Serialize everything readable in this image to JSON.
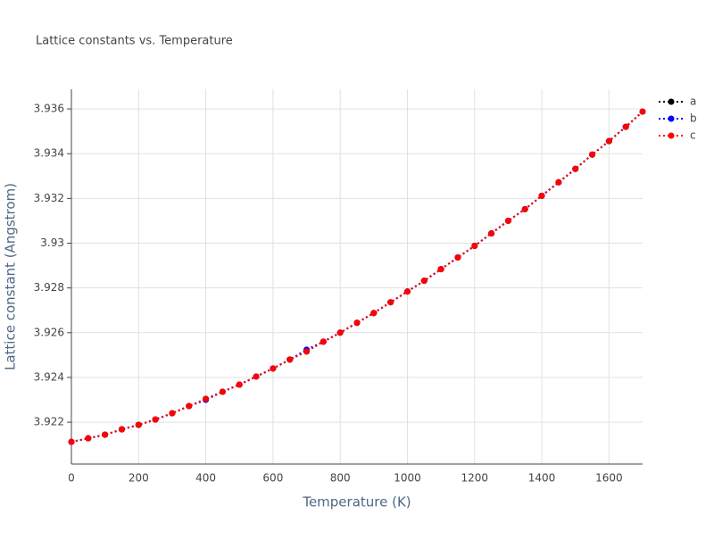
{
  "chart_data": {
    "type": "line",
    "title": "Lattice constants vs. Temperature",
    "x_label": "Temperature (K)",
    "y_label": "Lattice constant (Angstrom)",
    "x": [
      0,
      50,
      100,
      150,
      200,
      250,
      300,
      350,
      400,
      450,
      500,
      550,
      600,
      650,
      700,
      750,
      800,
      850,
      900,
      950,
      1000,
      1050,
      1100,
      1150,
      1200,
      1250,
      1300,
      1350,
      1400,
      1450,
      1500,
      1550,
      1600,
      1650,
      1700
    ],
    "series": [
      {
        "name": "a",
        "color": "#000000",
        "values": [
          3.92112,
          3.92128,
          3.92144,
          3.92168,
          3.92188,
          3.92212,
          3.9224,
          3.92272,
          3.92304,
          3.92336,
          3.92368,
          3.92404,
          3.9244,
          3.9248,
          3.92516,
          3.9256,
          3.926,
          3.92644,
          3.92688,
          3.92736,
          3.92784,
          3.92832,
          3.92884,
          3.92936,
          3.92988,
          3.93044,
          3.931,
          3.93152,
          3.93212,
          3.93272,
          3.93332,
          3.93396,
          3.93456,
          3.9352,
          3.93588
        ]
      },
      {
        "name": "b",
        "color": "#0000ff",
        "values": [
          3.92112,
          3.92128,
          3.92144,
          3.92168,
          3.92188,
          3.92212,
          3.9224,
          3.92272,
          3.923,
          3.92336,
          3.92368,
          3.92404,
          3.9244,
          3.9248,
          3.92524,
          3.9256,
          3.926,
          3.92644,
          3.92688,
          3.92736,
          3.92784,
          3.92832,
          3.92884,
          3.92936,
          3.92988,
          3.93044,
          3.931,
          3.93152,
          3.93212,
          3.93272,
          3.93332,
          3.93396,
          3.93456,
          3.9352,
          3.93588
        ]
      },
      {
        "name": "c",
        "color": "#ff0000",
        "values": [
          3.92112,
          3.92128,
          3.92144,
          3.92168,
          3.92188,
          3.92212,
          3.9224,
          3.92272,
          3.92304,
          3.92336,
          3.92368,
          3.92404,
          3.9244,
          3.9248,
          3.92516,
          3.9256,
          3.926,
          3.92644,
          3.92688,
          3.92736,
          3.92784,
          3.92832,
          3.92884,
          3.92936,
          3.92988,
          3.93044,
          3.931,
          3.93152,
          3.93212,
          3.93272,
          3.93332,
          3.93396,
          3.93456,
          3.9352,
          3.93588
        ]
      }
    ],
    "xlim": [
      0,
      1700
    ],
    "xticks": [
      0,
      200,
      400,
      600,
      800,
      1000,
      1200,
      1400,
      1600
    ],
    "ylim": [
      3.92013,
      3.93688
    ],
    "yticks": [
      3.922,
      3.924,
      3.926,
      3.928,
      3.93,
      3.932,
      3.934,
      3.936
    ],
    "grid": true,
    "legend": "right"
  }
}
